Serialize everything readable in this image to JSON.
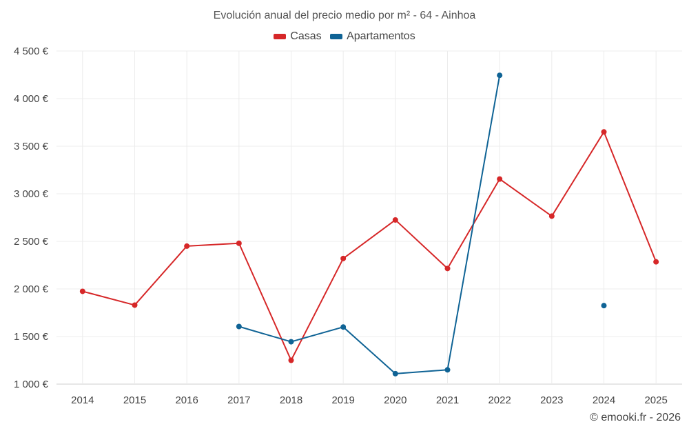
{
  "chart_data": {
    "type": "line",
    "title": "Evolución anual del precio medio por m² - 64 - Ainhoa",
    "categories": [
      "2014",
      "2015",
      "2016",
      "2017",
      "2018",
      "2019",
      "2020",
      "2021",
      "2022",
      "2023",
      "2024",
      "2025"
    ],
    "series": [
      {
        "name": "Casas",
        "color": "#d62728",
        "values": [
          1975,
          1830,
          2450,
          2480,
          1250,
          2320,
          2725,
          2215,
          3155,
          2765,
          3650,
          2285
        ]
      },
      {
        "name": "Apartamentos",
        "color": "#0f6395",
        "values": [
          null,
          null,
          null,
          1605,
          1445,
          1600,
          1110,
          1150,
          4245,
          null,
          1825,
          null
        ]
      }
    ],
    "y_ticks": [
      "1 000 €",
      "1 500 €",
      "2 000 €",
      "2 500 €",
      "3 000 €",
      "3 500 €",
      "4 000 €",
      "4 500 €"
    ],
    "y_tick_values": [
      1000,
      1500,
      2000,
      2500,
      3000,
      3500,
      4000,
      4500
    ],
    "ylim": [
      1000,
      4500
    ],
    "grid": true,
    "legend_position": "top-center",
    "credit": "© emooki.fr - 2026"
  }
}
